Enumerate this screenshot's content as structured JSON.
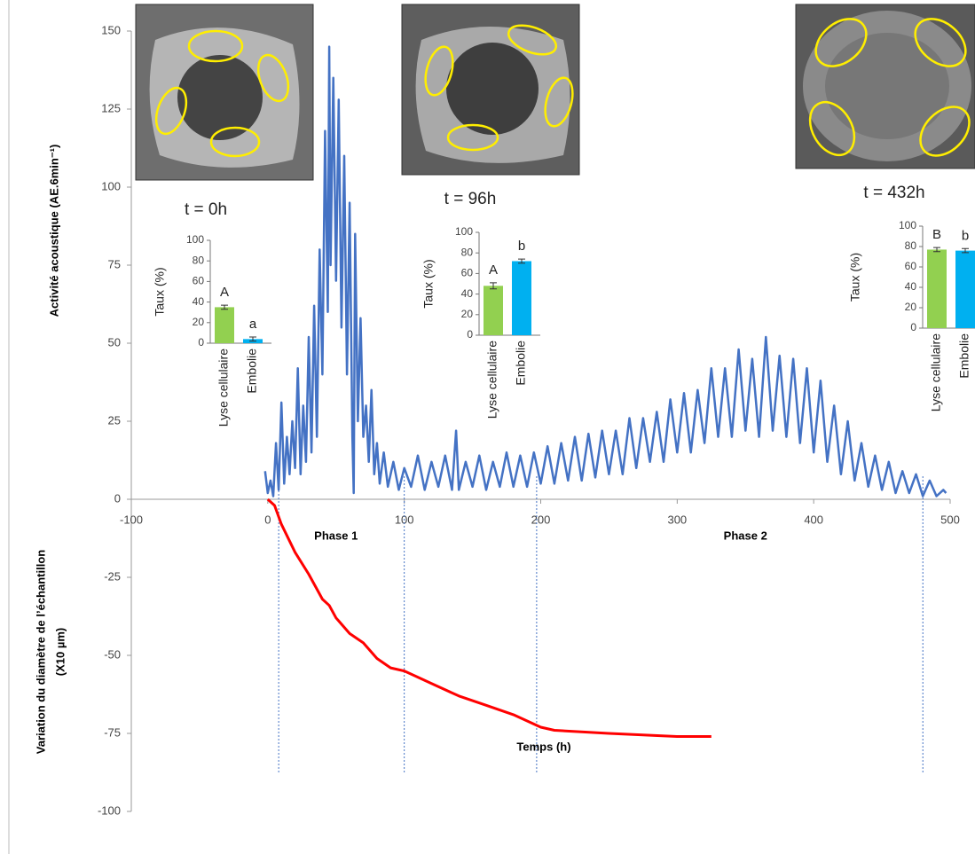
{
  "chart_data": [
    {
      "type": "line",
      "ylabel": "Activité acoustique (AE.6min⁻¹)",
      "ylabel2": [
        "Variation du diamètre de l’échantillon",
        "(X10 µm)"
      ],
      "xlabel": "Temps (h)",
      "annotations": [
        {
          "text": "Phase 1",
          "x": 50
        },
        {
          "text": "Phase 2",
          "x": 350
        }
      ],
      "xlim": [
        -100,
        500
      ],
      "xticks": [
        -100,
        0,
        100,
        200,
        300,
        400,
        500
      ],
      "ylim": [
        -100,
        150
      ],
      "yticks": [
        150,
        125,
        100,
        75,
        50,
        25,
        0,
        -25,
        -50,
        -75,
        -100
      ],
      "phase_lines": [
        8,
        100,
        197,
        480
      ],
      "series": [
        {
          "name": "Activité acoustique",
          "color": "#4472c4",
          "x": [
            -2,
            0,
            2,
            4,
            6,
            8,
            10,
            12,
            14,
            16,
            18,
            20,
            22,
            24,
            26,
            28,
            30,
            32,
            34,
            36,
            38,
            40,
            42,
            44,
            45,
            46,
            48,
            50,
            52,
            54,
            56,
            58,
            60,
            62,
            63,
            64,
            66,
            68,
            70,
            72,
            74,
            76,
            78,
            80,
            82,
            85,
            88,
            92,
            96,
            100,
            105,
            110,
            115,
            120,
            125,
            130,
            135,
            138,
            140,
            145,
            150,
            155,
            160,
            165,
            170,
            175,
            180,
            185,
            190,
            195,
            200,
            205,
            210,
            215,
            220,
            225,
            230,
            235,
            240,
            245,
            250,
            255,
            260,
            265,
            270,
            275,
            280,
            285,
            290,
            295,
            300,
            305,
            310,
            315,
            320,
            325,
            330,
            335,
            340,
            345,
            350,
            355,
            360,
            365,
            370,
            375,
            380,
            385,
            390,
            395,
            400,
            405,
            410,
            415,
            420,
            425,
            430,
            435,
            440,
            445,
            450,
            455,
            460,
            465,
            470,
            475,
            480,
            485,
            490,
            495,
            497
          ],
          "values": [
            9,
            2,
            6,
            1,
            18,
            3,
            31,
            5,
            20,
            8,
            25,
            10,
            42,
            8,
            30,
            12,
            52,
            15,
            62,
            20,
            80,
            40,
            118,
            60,
            145,
            75,
            135,
            70,
            128,
            55,
            110,
            40,
            95,
            20,
            2,
            85,
            25,
            58,
            20,
            30,
            12,
            35,
            8,
            18,
            5,
            15,
            4,
            12,
            3,
            10,
            4,
            14,
            3,
            12,
            4,
            14,
            3,
            22,
            3,
            12,
            4,
            14,
            3,
            12,
            4,
            15,
            4,
            14,
            4,
            15,
            5,
            17,
            5,
            18,
            6,
            20,
            6,
            21,
            7,
            22,
            8,
            22,
            8,
            26,
            10,
            26,
            12,
            28,
            12,
            32,
            15,
            34,
            15,
            35,
            18,
            42,
            20,
            42,
            20,
            48,
            22,
            45,
            20,
            52,
            22,
            46,
            20,
            45,
            18,
            42,
            15,
            38,
            12,
            30,
            8,
            25,
            6,
            18,
            4,
            14,
            3,
            12,
            2,
            9,
            2,
            8,
            1,
            6,
            1,
            3,
            2
          ]
        },
        {
          "name": "Variation du diamètre",
          "color": "#ff0000",
          "x": [
            0,
            5,
            10,
            20,
            30,
            40,
            45,
            50,
            60,
            70,
            80,
            90,
            100,
            120,
            140,
            160,
            180,
            200,
            210,
            250,
            300,
            325
          ],
          "values": [
            0,
            -2,
            -8,
            -17,
            -24,
            -32,
            -34,
            -38,
            -43,
            -46,
            -51,
            -54,
            -55,
            -59,
            -63,
            -66,
            -69,
            -73,
            -74,
            -75,
            -76,
            -76
          ]
        }
      ]
    },
    {
      "type": "bar",
      "title": "t = 0h",
      "ylabel": "Taux (%)",
      "categories": [
        "Lyse cellulaire",
        "Embolie"
      ],
      "values": [
        35,
        4
      ],
      "errors": [
        2,
        2
      ],
      "letters": [
        "A",
        "a"
      ],
      "colors": [
        "#92d050",
        "#00b0f0"
      ],
      "ylim": [
        0,
        100
      ],
      "yticks": [
        0,
        20,
        40,
        60,
        80,
        100
      ]
    },
    {
      "type": "bar",
      "title": "t = 96h",
      "ylabel": "Taux (%)",
      "categories": [
        "Lyse cellulaire",
        "Embolie"
      ],
      "values": [
        48,
        72
      ],
      "errors": [
        3,
        2
      ],
      "letters": [
        "A",
        "b"
      ],
      "colors": [
        "#92d050",
        "#00b0f0"
      ],
      "ylim": [
        0,
        100
      ],
      "yticks": [
        0,
        20,
        40,
        60,
        80,
        100
      ]
    },
    {
      "type": "bar",
      "title": "t = 432h",
      "ylabel": "Taux (%)",
      "categories": [
        "Lyse cellulaire",
        "Embolie"
      ],
      "values": [
        77,
        76
      ],
      "errors": [
        2,
        2
      ],
      "letters": [
        "B",
        "b"
      ],
      "colors": [
        "#92d050",
        "#00b0f0"
      ],
      "ylim": [
        0,
        100
      ],
      "yticks": [
        0,
        20,
        40,
        60,
        80,
        100
      ]
    }
  ]
}
